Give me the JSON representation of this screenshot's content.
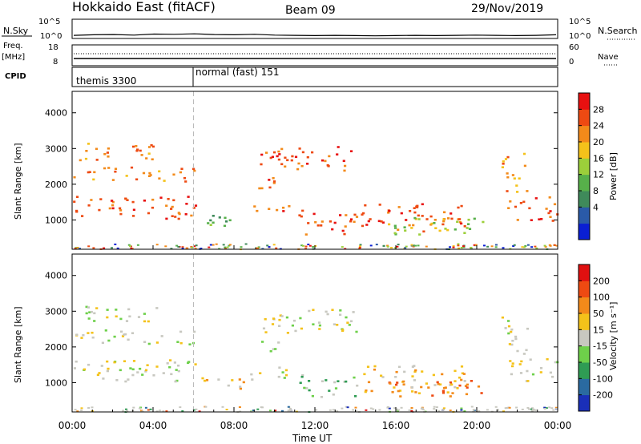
{
  "header": {
    "title": "Hokkaido East (fitACF)",
    "beam": "Beam 09",
    "date": "29/Nov/2019"
  },
  "nsky_panel": {
    "label": "N.Sky",
    "left_ticks": [
      "10^5",
      "10^0"
    ],
    "right_ticks": [
      "10^5",
      "10^0"
    ],
    "right_label": "N.Search",
    "noise_values": [
      0.6,
      0.8,
      0.9,
      0.7,
      1.1,
      1.0,
      1.2,
      0.9,
      0.8,
      1.0,
      0.7,
      0.6,
      0.5,
      0.6,
      0.5,
      0.4,
      0.5,
      0.6,
      0.5,
      0.6,
      0.7,
      0.6,
      0.5,
      0.6,
      0.8
    ]
  },
  "freq_panel": {
    "label_line1": "Freq.",
    "label_line2": "[MHz]",
    "left_ticks": [
      "18",
      "8"
    ],
    "right_ticks": [
      "60",
      "0"
    ],
    "right_label": "Nave"
  },
  "cpid_panel": {
    "label": "CPID",
    "modes": [
      {
        "name": "themis 3300",
        "start_hour": 0
      },
      {
        "name": "normal (fast) 151",
        "start_hour": 6
      }
    ]
  },
  "power_panel": {
    "ylabel": "Slant Range [km]",
    "yticks": [
      "4000",
      "3000",
      "2000",
      "1000"
    ],
    "colorbar_title": "Power [dB]",
    "colorbar_ticks": [
      "28",
      "24",
      "20",
      "16",
      "12",
      "8",
      "4"
    ],
    "colors": [
      "#0a1fd4",
      "#2a5aa8",
      "#3f8a5a",
      "#57b04a",
      "#9ccf3a",
      "#f4c21a",
      "#f38a1a",
      "#ee4a12",
      "#e81010"
    ]
  },
  "velocity_panel": {
    "ylabel": "Slant Range [km]",
    "yticks": [
      "4000",
      "3000",
      "2000",
      "1000"
    ],
    "colorbar_title": "Velocity [m s⁻¹]",
    "colorbar_ticks": [
      "200",
      "100",
      "50",
      "15",
      "-15",
      "-50",
      "-100",
      "-200"
    ],
    "colors": [
      "#1a2fb8",
      "#2a6aa0",
      "#2f9c54",
      "#6ed04a",
      "#c8c8c0",
      "#f4c21a",
      "#f38a1a",
      "#ee4a12",
      "#e01010"
    ]
  },
  "xaxis": {
    "ticks": [
      "00:00",
      "04:00",
      "08:00",
      "12:00",
      "16:00",
      "20:00",
      "00:00"
    ],
    "label": "Time UT"
  },
  "chart_data": {
    "type": "heatmap",
    "title": "Hokkaido East (fitACF)",
    "xlabel": "Time UT",
    "ylabel": "Slant Range [km]",
    "xlim_hours": [
      0,
      24
    ],
    "ylim_km": [
      180,
      4600
    ],
    "series": [
      {
        "name": "Power [dB]",
        "range": [
          0,
          30
        ]
      },
      {
        "name": "Velocity [m s⁻¹]",
        "range": [
          -250,
          250
        ]
      }
    ],
    "echo_regions": [
      {
        "t0": 0.0,
        "t1": 6.2,
        "r0": 1050,
        "r1": 1700,
        "power": 28,
        "velocity": 0
      },
      {
        "t0": 0.0,
        "t1": 6.0,
        "r0": 2100,
        "r1": 2500,
        "power": 24,
        "velocity": -5
      },
      {
        "t0": 0.3,
        "t1": 4.2,
        "r0": 2700,
        "r1": 3200,
        "power": 22,
        "velocity": 0
      },
      {
        "t0": 6.2,
        "t1": 8.8,
        "r0": 850,
        "r1": 1200,
        "power": 12,
        "velocity": 60
      },
      {
        "t0": 8.8,
        "t1": 11.5,
        "r0": 1100,
        "r1": 1450,
        "power": 26,
        "velocity": -30
      },
      {
        "t0": 9.2,
        "t1": 10.2,
        "r0": 1900,
        "r1": 3100,
        "power": 28,
        "velocity": 0
      },
      {
        "t0": 10.0,
        "t1": 14.0,
        "r0": 2400,
        "r1": 3100,
        "power": 26,
        "velocity": -10
      },
      {
        "t0": 11.2,
        "t1": 14.0,
        "r0": 600,
        "r1": 1200,
        "power": 28,
        "velocity": -60
      },
      {
        "t0": 14.0,
        "t1": 19.5,
        "r0": 700,
        "r1": 1500,
        "power": 26,
        "velocity": 70
      },
      {
        "t0": 15.5,
        "t1": 20.5,
        "r0": 600,
        "r1": 1100,
        "power": 16,
        "velocity": 100
      },
      {
        "t0": 21.5,
        "t1": 24.0,
        "r0": 1000,
        "r1": 1700,
        "power": 28,
        "velocity": 0
      },
      {
        "t0": 21.2,
        "t1": 22.5,
        "r0": 1800,
        "r1": 2900,
        "power": 24,
        "velocity": 0
      }
    ]
  }
}
